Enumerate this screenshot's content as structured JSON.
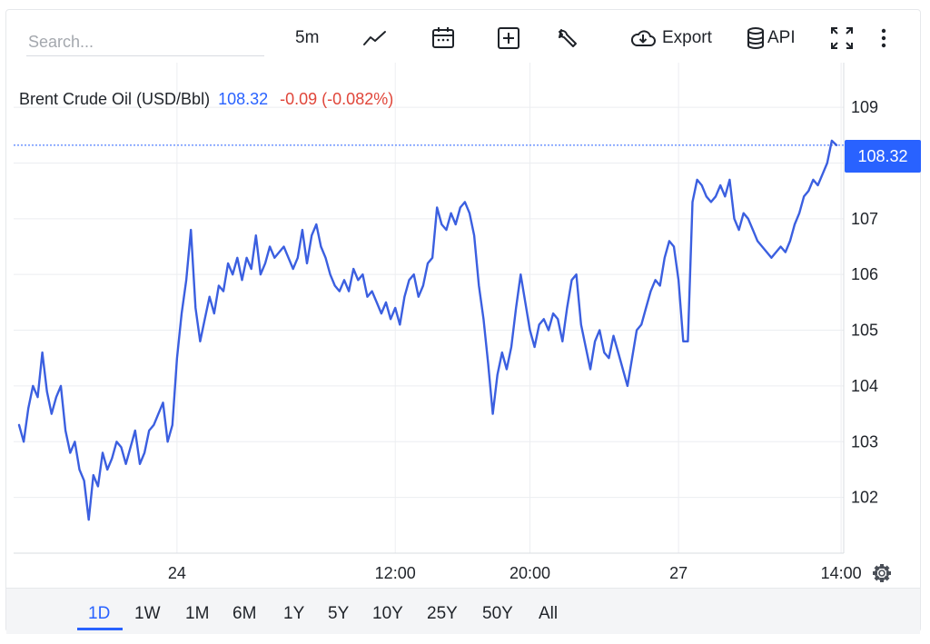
{
  "toolbar": {
    "search_placeholder": "Search...",
    "interval": "5m",
    "export_label": "Export",
    "api_label": "API"
  },
  "legend": {
    "name": "Brent Crude Oil (USD/Bbl)",
    "last": "108.32",
    "change": "-0.09 (-0.082%)"
  },
  "price_tag": "108.32",
  "timeframes": [
    "1D",
    "1W",
    "1M",
    "6M",
    "1Y",
    "5Y",
    "10Y",
    "25Y",
    "50Y",
    "All"
  ],
  "active_timeframe": "1D",
  "colors": {
    "line": "#3b5fe0",
    "accent": "#2962ff",
    "negative": "#e0463a",
    "grid": "#eceef1"
  },
  "chart_data": {
    "type": "line",
    "title": "",
    "xlabel": "",
    "ylabel": "",
    "ylim": [
      101,
      109.8
    ],
    "y_ticks": [
      102,
      103,
      104,
      105,
      106,
      107,
      108,
      109
    ],
    "x_ticks": [
      {
        "label": "24",
        "index": 34
      },
      {
        "label": "12:00",
        "index": 81
      },
      {
        "label": "20:00",
        "index": 110
      },
      {
        "label": "27",
        "index": 142
      },
      {
        "label": "14:00",
        "index": 177
      }
    ],
    "grid": true,
    "last_price_line": 108.32,
    "series": [
      {
        "values": [
          103.3,
          103.0,
          103.6,
          104.0,
          103.8,
          104.6,
          103.9,
          103.5,
          103.8,
          104.0,
          103.2,
          102.8,
          103.0,
          102.5,
          102.3,
          101.6,
          102.4,
          102.2,
          102.8,
          102.5,
          102.7,
          103.0,
          102.9,
          102.6,
          102.9,
          103.2,
          102.6,
          102.8,
          103.2,
          103.3,
          103.5,
          103.7,
          103.0,
          103.3,
          104.5,
          105.3,
          105.9,
          106.8,
          105.4,
          104.8,
          105.2,
          105.6,
          105.3,
          105.8,
          105.7,
          106.2,
          106.0,
          106.3,
          105.9,
          106.3,
          106.1,
          106.7,
          106.0,
          106.2,
          106.5,
          106.3,
          106.4,
          106.5,
          106.3,
          106.1,
          106.3,
          106.8,
          106.2,
          106.7,
          106.9,
          106.5,
          106.3,
          106.0,
          105.8,
          105.7,
          105.9,
          105.7,
          106.1,
          105.9,
          106.0,
          105.6,
          105.7,
          105.5,
          105.3,
          105.5,
          105.2,
          105.4,
          105.1,
          105.6,
          105.9,
          106.0,
          105.6,
          105.8,
          106.2,
          106.3,
          107.2,
          106.9,
          106.8,
          107.1,
          106.9,
          107.2,
          107.3,
          107.1,
          106.7,
          105.8,
          105.2,
          104.4,
          103.5,
          104.2,
          104.6,
          104.3,
          104.7,
          105.4,
          106.0,
          105.5,
          105.0,
          104.7,
          105.1,
          105.2,
          105.0,
          105.3,
          105.2,
          104.8,
          105.4,
          105.9,
          106.0,
          105.1,
          104.7,
          104.3,
          104.8,
          105.0,
          104.6,
          104.5,
          104.9,
          104.6,
          104.3,
          104.0,
          104.5,
          105.0,
          105.1,
          105.4,
          105.7,
          105.9,
          105.8,
          106.3,
          106.6,
          106.5,
          105.9,
          104.8,
          104.8,
          107.3,
          107.7,
          107.6,
          107.4,
          107.3,
          107.4,
          107.6,
          107.4,
          107.7,
          107.0,
          106.8,
          107.1,
          107.0,
          106.8,
          106.6,
          106.5,
          106.4,
          106.3,
          106.4,
          106.5,
          106.4,
          106.6,
          106.9,
          107.1,
          107.4,
          107.5,
          107.7,
          107.6,
          107.8,
          108.0,
          108.4,
          108.32
        ]
      }
    ]
  }
}
